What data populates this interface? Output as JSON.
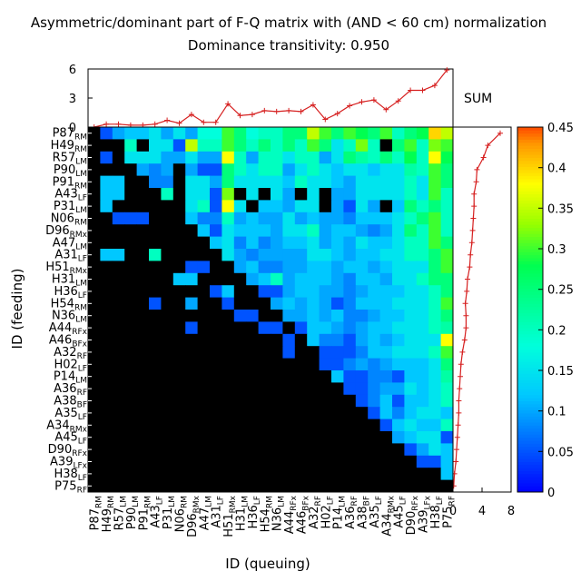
{
  "chart_data": {
    "type": "heatmap",
    "title": "Asymmetric/dominant part of F-Q matrix with (AND < 60 cm) normalization",
    "subtitle": "Dominance transitivity: 0.950",
    "xlabel": "ID (queuing)",
    "ylabel": "ID (feeding)",
    "ids": [
      {
        "main": "P87",
        "sub": "RM"
      },
      {
        "main": "H49",
        "sub": "RM"
      },
      {
        "main": "R57",
        "sub": "LM"
      },
      {
        "main": "P90",
        "sub": "LM"
      },
      {
        "main": "P91",
        "sub": "RM"
      },
      {
        "main": "A43",
        "sub": "LF"
      },
      {
        "main": "P31",
        "sub": "LM"
      },
      {
        "main": "N06",
        "sub": "RM"
      },
      {
        "main": "D96",
        "sub": "RMx"
      },
      {
        "main": "A47",
        "sub": "LM"
      },
      {
        "main": "A31",
        "sub": "LF"
      },
      {
        "main": "H51",
        "sub": "RMx"
      },
      {
        "main": "H31",
        "sub": "LM"
      },
      {
        "main": "H36",
        "sub": "LF"
      },
      {
        "main": "H54",
        "sub": "RM"
      },
      {
        "main": "N36",
        "sub": "LM"
      },
      {
        "main": "A44",
        "sub": "RFx"
      },
      {
        "main": "A46",
        "sub": "BFx"
      },
      {
        "main": "A32",
        "sub": "RF"
      },
      {
        "main": "H02",
        "sub": "LF"
      },
      {
        "main": "P14",
        "sub": "LM"
      },
      {
        "main": "A36",
        "sub": "RF"
      },
      {
        "main": "A38",
        "sub": "BF"
      },
      {
        "main": "A35",
        "sub": "LF"
      },
      {
        "main": "A34",
        "sub": "RMx"
      },
      {
        "main": "A45",
        "sub": "LF"
      },
      {
        "main": "D90",
        "sub": "RFx"
      },
      {
        "main": "A39",
        "sub": "LFx"
      },
      {
        "main": "H38",
        "sub": "LF"
      },
      {
        "main": "P75",
        "sub": "RF"
      }
    ],
    "colorbar": {
      "range": [
        0,
        0.45
      ],
      "ticks": [
        "0",
        "0.05",
        "0.1",
        "0.15",
        "0.2",
        "0.25",
        "0.3",
        "0.35",
        "0.4",
        "0.45"
      ]
    },
    "top_sum": {
      "label": "SUM",
      "ylim": [
        0,
        6
      ],
      "ticks": [
        "6",
        "3",
        "0"
      ],
      "values": [
        0,
        0.3,
        0.3,
        0.2,
        0.2,
        0.3,
        0.7,
        0.4,
        1.3,
        0.5,
        0.5,
        2.4,
        1.2,
        1.3,
        1.7,
        1.6,
        1.7,
        1.6,
        2.3,
        0.8,
        1.4,
        2.2,
        2.6,
        2.8,
        1.8,
        2.7,
        3.8,
        3.8,
        4.3,
        5.9
      ]
    },
    "right_sum": {
      "xlim": [
        0,
        8
      ],
      "ticks": [
        "0",
        "4",
        "8"
      ],
      "values": [
        6.5,
        4.8,
        4.2,
        3.3,
        3.2,
        2.9,
        2.9,
        2.8,
        2.7,
        2.6,
        2.4,
        2.3,
        2.0,
        1.9,
        1.7,
        1.8,
        1.8,
        1.6,
        1.3,
        1.1,
        1.0,
        0.9,
        0.8,
        0.8,
        0.7,
        0.6,
        0.5,
        0.4,
        0.2,
        0.1
      ]
    },
    "matrix": [
      [
        0,
        0.05,
        0.1,
        0.12,
        0.12,
        0.15,
        0.1,
        0.15,
        0.1,
        0.18,
        0.18,
        0.3,
        0.25,
        0.18,
        0.2,
        0.2,
        0.25,
        0.25,
        0.35,
        0.3,
        0.25,
        0.3,
        0.28,
        0.25,
        0.3,
        0.2,
        0.25,
        0.28,
        0.4,
        0.35
      ],
      [
        0,
        0,
        0,
        0.2,
        0,
        0.15,
        0.15,
        0.05,
        0.35,
        0.2,
        0.2,
        0.3,
        0.25,
        0.2,
        0.25,
        0.2,
        0.25,
        0.2,
        0.3,
        0.25,
        0.15,
        0.2,
        0.32,
        0.2,
        0,
        0.25,
        0.3,
        0.2,
        0.32,
        0.3
      ],
      [
        0,
        0.05,
        0,
        0.15,
        0.15,
        0.15,
        0.1,
        0.1,
        0.15,
        0.1,
        0.1,
        0.38,
        0.2,
        0.1,
        0.2,
        0.2,
        0.15,
        0.2,
        0.2,
        0.1,
        0.15,
        0.25,
        0.22,
        0.2,
        0.25,
        0.2,
        0.28,
        0.2,
        0.38,
        0.28
      ],
      [
        0,
        0,
        0,
        0,
        0.1,
        0.08,
        0.1,
        0,
        0.1,
        0.05,
        0.05,
        0.25,
        0.2,
        0.15,
        0.2,
        0.2,
        0.1,
        0.15,
        0.2,
        0.15,
        0.12,
        0.15,
        0.15,
        0.12,
        0.15,
        0.15,
        0.22,
        0.2,
        0.3,
        0.25
      ],
      [
        0,
        0.12,
        0.12,
        0,
        0,
        0.08,
        0.08,
        0,
        0.15,
        0.15,
        0.1,
        0.25,
        0.15,
        0.15,
        0.15,
        0.15,
        0.12,
        0.2,
        0.15,
        0.15,
        0.12,
        0.1,
        0.15,
        0.15,
        0.15,
        0.15,
        0.2,
        0.15,
        0.3,
        0.25
      ],
      [
        0,
        0.12,
        0.12,
        0,
        0,
        0,
        0.2,
        0,
        0.15,
        0.15,
        0.05,
        0.32,
        0,
        0.15,
        0,
        0.15,
        0.1,
        0,
        0.15,
        0,
        0.1,
        0.1,
        0.15,
        0.15,
        0.15,
        0.15,
        0.2,
        0.15,
        0.3,
        0.2
      ],
      [
        0,
        0.12,
        0,
        0,
        0,
        0,
        0,
        0,
        0.15,
        0.2,
        0.05,
        0.38,
        0.15,
        0,
        0.12,
        0.12,
        0.1,
        0.15,
        0.15,
        0,
        0.1,
        0.05,
        0.15,
        0.1,
        0,
        0.12,
        0.25,
        0.2,
        0.25,
        0.2
      ],
      [
        0,
        0,
        0.05,
        0.05,
        0.05,
        0,
        0,
        0,
        0.12,
        0.08,
        0.08,
        0.2,
        0.1,
        0.12,
        0.1,
        0.1,
        0.15,
        0.1,
        0.12,
        0.1,
        0.1,
        0.08,
        0.12,
        0.12,
        0.12,
        0.15,
        0.2,
        0.25,
        0.3,
        0.2
      ],
      [
        0,
        0,
        0,
        0,
        0,
        0,
        0,
        0,
        0,
        0.12,
        0.05,
        0.15,
        0.12,
        0.12,
        0.12,
        0.1,
        0.15,
        0.15,
        0.2,
        0.1,
        0.12,
        0.12,
        0.1,
        0.08,
        0.1,
        0.15,
        0.25,
        0.2,
        0.3,
        0.2
      ],
      [
        0,
        0,
        0,
        0,
        0,
        0,
        0,
        0,
        0,
        0,
        0.12,
        0.15,
        0.08,
        0.12,
        0.08,
        0.1,
        0.12,
        0.12,
        0.15,
        0.1,
        0.12,
        0.1,
        0.15,
        0.12,
        0.12,
        0.15,
        0.2,
        0.2,
        0.3,
        0.25
      ],
      [
        0,
        0.12,
        0.12,
        0,
        0,
        0.2,
        0,
        0,
        0,
        0,
        0,
        0.15,
        0.1,
        0.08,
        0.1,
        0.1,
        0.1,
        0.1,
        0.15,
        0.15,
        0.12,
        0.1,
        0.12,
        0.12,
        0.15,
        0.15,
        0.2,
        0.2,
        0.25,
        0.3
      ],
      [
        0,
        0,
        0,
        0,
        0,
        0,
        0,
        0,
        0.05,
        0.05,
        0,
        0,
        0.1,
        0.12,
        0.08,
        0.08,
        0.1,
        0.1,
        0.12,
        0.12,
        0.1,
        0.12,
        0.12,
        0.1,
        0.12,
        0.15,
        0.15,
        0.15,
        0.25,
        0.3
      ],
      [
        0,
        0,
        0,
        0,
        0,
        0,
        0,
        0.12,
        0.12,
        0,
        0,
        0,
        0,
        0.1,
        0.12,
        0.2,
        0.1,
        0.12,
        0.12,
        0.12,
        0.1,
        0.08,
        0.12,
        0.12,
        0.1,
        0.15,
        0.15,
        0.2,
        0.25,
        0.25
      ],
      [
        0,
        0,
        0,
        0,
        0,
        0,
        0,
        0,
        0,
        0,
        0.05,
        0.12,
        0,
        0,
        0.05,
        0.05,
        0.1,
        0.12,
        0.12,
        0.1,
        0.1,
        0.08,
        0.1,
        0.12,
        0.12,
        0.12,
        0.15,
        0.15,
        0.2,
        0.25
      ],
      [
        0,
        0,
        0,
        0,
        0,
        0.05,
        0,
        0,
        0.1,
        0,
        0,
        0.05,
        0,
        0,
        0,
        0.1,
        0.12,
        0.1,
        0.12,
        0.1,
        0.05,
        0.08,
        0.12,
        0.12,
        0.12,
        0.15,
        0.15,
        0.15,
        0.2,
        0.3
      ],
      [
        0,
        0,
        0,
        0,
        0,
        0,
        0,
        0,
        0,
        0,
        0,
        0,
        0.05,
        0.05,
        0,
        0,
        0.1,
        0.1,
        0.12,
        0.1,
        0.12,
        0.08,
        0.08,
        0.1,
        0.12,
        0.12,
        0.15,
        0.15,
        0.2,
        0.25
      ],
      [
        0,
        0,
        0,
        0,
        0,
        0,
        0,
        0,
        0.05,
        0,
        0,
        0,
        0,
        0,
        0.05,
        0.05,
        0,
        0.05,
        0.12,
        0.12,
        0.1,
        0.08,
        0.1,
        0.12,
        0.12,
        0.15,
        0.15,
        0.15,
        0.2,
        0.22
      ],
      [
        0,
        0,
        0,
        0,
        0,
        0,
        0,
        0,
        0,
        0,
        0,
        0,
        0,
        0,
        0,
        0,
        0.05,
        0,
        0.12,
        0.08,
        0.08,
        0.05,
        0.1,
        0.12,
        0.1,
        0.12,
        0.15,
        0.15,
        0.15,
        0.38
      ],
      [
        0,
        0,
        0,
        0,
        0,
        0,
        0,
        0,
        0,
        0,
        0,
        0,
        0,
        0,
        0,
        0,
        0.05,
        0,
        0,
        0.05,
        0.05,
        0.05,
        0.08,
        0.12,
        0.12,
        0.15,
        0.15,
        0.15,
        0.2,
        0.3
      ],
      [
        0,
        0,
        0,
        0,
        0,
        0,
        0,
        0,
        0,
        0,
        0,
        0,
        0,
        0,
        0,
        0,
        0,
        0,
        0,
        0.05,
        0.05,
        0.08,
        0.1,
        0.08,
        0.1,
        0.12,
        0.12,
        0.12,
        0.15,
        0.25
      ],
      [
        0,
        0,
        0,
        0,
        0,
        0,
        0,
        0,
        0,
        0,
        0,
        0,
        0,
        0,
        0,
        0,
        0,
        0,
        0,
        0,
        0.12,
        0.05,
        0.05,
        0.08,
        0.08,
        0.05,
        0.12,
        0.12,
        0.15,
        0.22
      ],
      [
        0,
        0,
        0,
        0,
        0,
        0,
        0,
        0,
        0,
        0,
        0,
        0,
        0,
        0,
        0,
        0,
        0,
        0,
        0,
        0,
        0,
        0.05,
        0.05,
        0.08,
        0.1,
        0.1,
        0.15,
        0.12,
        0.15,
        0.2
      ],
      [
        0,
        0,
        0,
        0,
        0,
        0,
        0,
        0,
        0,
        0,
        0,
        0,
        0,
        0,
        0,
        0,
        0,
        0,
        0,
        0,
        0,
        0,
        0.05,
        0.08,
        0.12,
        0.05,
        0.12,
        0.12,
        0.15,
        0.2
      ],
      [
        0,
        0,
        0,
        0,
        0,
        0,
        0,
        0,
        0,
        0,
        0,
        0,
        0,
        0,
        0,
        0,
        0,
        0,
        0,
        0,
        0,
        0,
        0,
        0.05,
        0.12,
        0.08,
        0.12,
        0.15,
        0.15,
        0.12
      ],
      [
        0,
        0,
        0,
        0,
        0,
        0,
        0,
        0,
        0,
        0,
        0,
        0,
        0,
        0,
        0,
        0,
        0,
        0,
        0,
        0,
        0,
        0,
        0,
        0,
        0.05,
        0.12,
        0.15,
        0.12,
        0.12,
        0.2
      ],
      [
        0,
        0,
        0,
        0,
        0,
        0,
        0,
        0,
        0,
        0,
        0,
        0,
        0,
        0,
        0,
        0,
        0,
        0,
        0,
        0,
        0,
        0,
        0,
        0,
        0,
        0.1,
        0.12,
        0.15,
        0.15,
        0.05
      ],
      [
        0,
        0,
        0,
        0,
        0,
        0,
        0,
        0,
        0,
        0,
        0,
        0,
        0,
        0,
        0,
        0,
        0,
        0,
        0,
        0,
        0,
        0,
        0,
        0,
        0,
        0,
        0.05,
        0.1,
        0.15,
        0.12
      ],
      [
        0,
        0,
        0,
        0,
        0,
        0,
        0,
        0,
        0,
        0,
        0,
        0,
        0,
        0,
        0,
        0,
        0,
        0,
        0,
        0,
        0,
        0,
        0,
        0,
        0,
        0,
        0,
        0.05,
        0.05,
        0.12
      ],
      [
        0,
        0,
        0,
        0,
        0,
        0,
        0,
        0,
        0,
        0,
        0,
        0,
        0,
        0,
        0,
        0,
        0,
        0,
        0,
        0,
        0,
        0,
        0,
        0,
        0,
        0,
        0,
        0,
        0,
        0.12
      ],
      [
        0,
        0,
        0,
        0,
        0,
        0,
        0,
        0,
        0,
        0,
        0,
        0,
        0,
        0,
        0,
        0,
        0,
        0,
        0,
        0,
        0,
        0,
        0,
        0,
        0,
        0,
        0,
        0,
        0,
        0
      ]
    ]
  }
}
